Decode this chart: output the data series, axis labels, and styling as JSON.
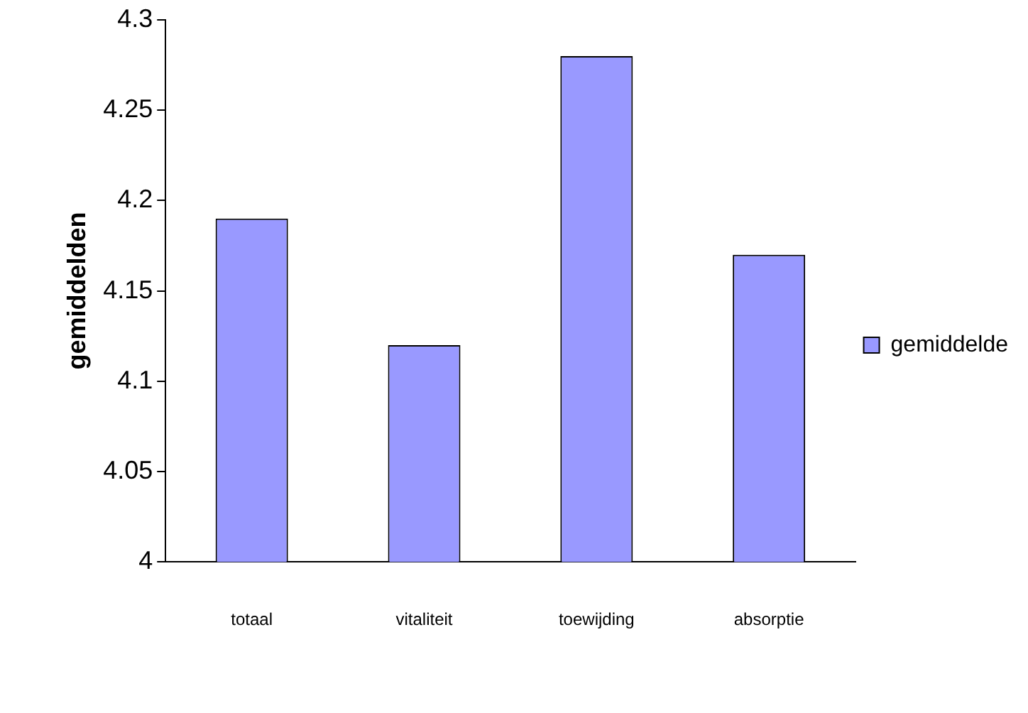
{
  "chart_data": {
    "type": "bar",
    "ylabel": "gemiddelden",
    "categories": [
      "totaal",
      "vitaliteit",
      "toewijding",
      "absorptie"
    ],
    "series": [
      {
        "name": "gemiddelde",
        "color": "#9999ff",
        "values": [
          4.19,
          4.12,
          4.28,
          4.17
        ]
      }
    ],
    "ylim": [
      4,
      4.3
    ],
    "yticks": [
      4,
      4.05,
      4.1,
      4.15,
      4.2,
      4.25,
      4.3
    ],
    "legend": "right",
    "grid": false
  }
}
